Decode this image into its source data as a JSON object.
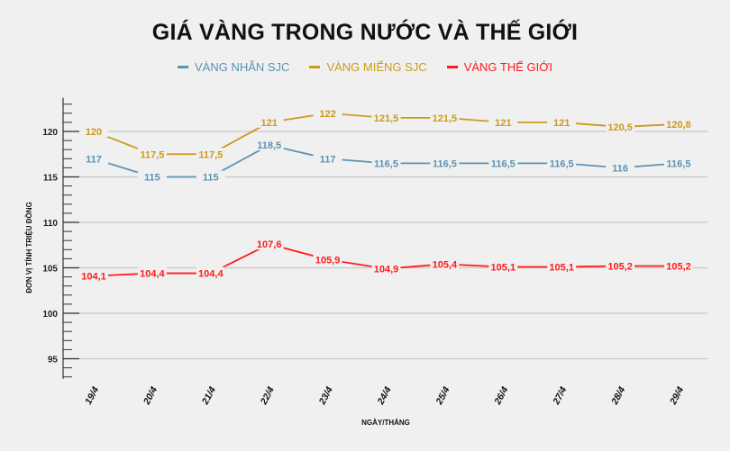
{
  "chart_data": {
    "type": "line",
    "title": "GIÁ VÀNG TRONG NƯỚC VÀ THẾ GIỚI",
    "xlabel": "NGÀY/THÁNG",
    "ylabel": "ĐƠN VỊ TÍNH TRIỆU ĐỒNG",
    "categories": [
      "19/4",
      "20/4",
      "21/4",
      "22/4",
      "23/4",
      "24/4",
      "25/4",
      "26/4",
      "27/4",
      "28/4",
      "29/4"
    ],
    "ylim": [
      93,
      123.5
    ],
    "yticks": [
      95,
      100,
      105,
      110,
      115,
      120
    ],
    "grid": true,
    "legend_position": "top",
    "series": [
      {
        "name": "VÀNG NHẪN SJC",
        "color": "#5b93b5",
        "values": [
          117,
          115,
          115,
          118.5,
          117,
          116.5,
          116.5,
          116.5,
          116.5,
          116,
          116.5
        ],
        "labels": [
          "117",
          "115",
          "115",
          "118,5",
          "117",
          "116,5",
          "116,5",
          "116,5",
          "116,5",
          "116",
          "116,5"
        ]
      },
      {
        "name": "VÀNG MIẾNG SJC",
        "color": "#cc9a1c",
        "values": [
          120,
          117.5,
          117.5,
          121,
          122,
          121.5,
          121.5,
          121,
          121,
          120.5,
          120.8
        ],
        "labels": [
          "120",
          "117,5",
          "117,5",
          "121",
          "122",
          "121,5",
          "121,5",
          "121",
          "121",
          "120,5",
          "120,8"
        ]
      },
      {
        "name": "VÀNG THẾ GIỚI",
        "color": "#ff1a1a",
        "values": [
          104.1,
          104.4,
          104.4,
          107.6,
          105.9,
          104.9,
          105.4,
          105.1,
          105.1,
          105.2,
          105.2
        ],
        "labels": [
          "104,1",
          "104,4",
          "104,4",
          "107,6",
          "105,9",
          "104,9",
          "105,4",
          "105,1",
          "105,1",
          "105,2",
          "105,2"
        ]
      }
    ]
  }
}
